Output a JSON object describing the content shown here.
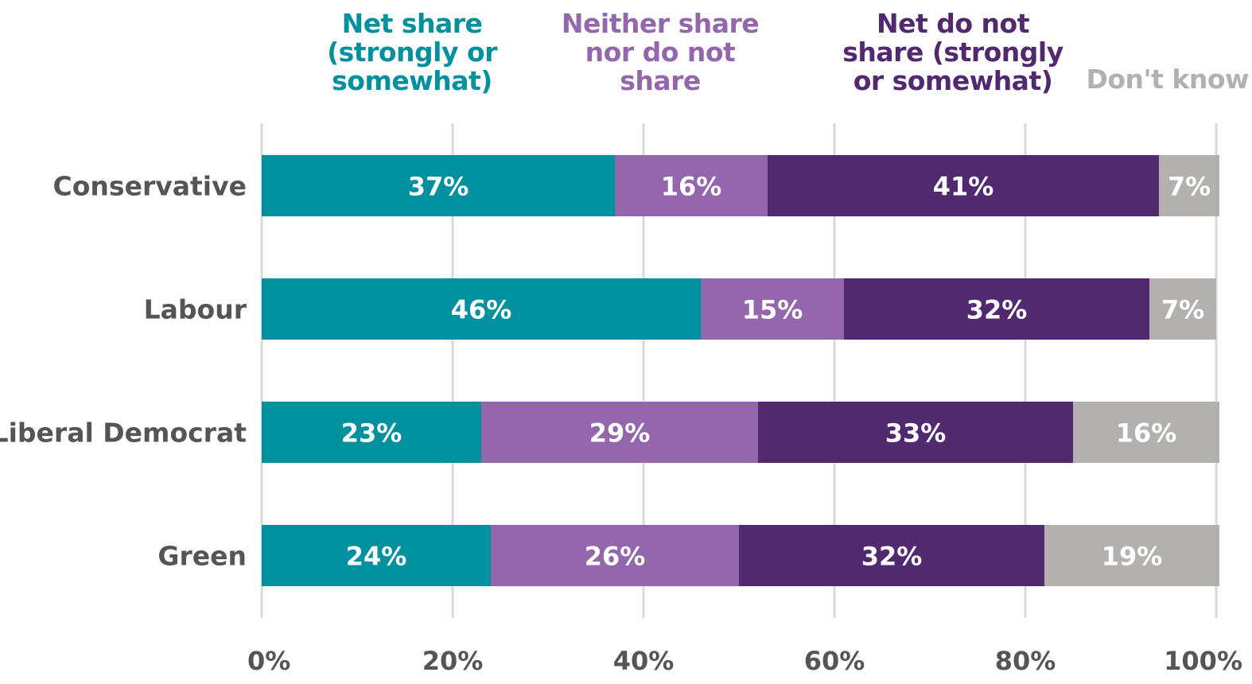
{
  "chart_data": {
    "type": "bar",
    "orientation": "horizontal",
    "stacked": true,
    "categories": [
      "Conservative",
      "Labour",
      "Liberal Democrat",
      "Green"
    ],
    "series": [
      {
        "name": "Net share (strongly or somewhat)",
        "legend_lines": [
          "Net share",
          "(strongly or",
          "somewhat)"
        ],
        "color": "#01909E",
        "values": [
          37,
          46,
          23,
          24
        ]
      },
      {
        "name": "Neither share nor do not share",
        "legend_lines": [
          "Neither share",
          "nor do not",
          "share"
        ],
        "color": "#9467AC",
        "values": [
          16,
          15,
          29,
          26
        ]
      },
      {
        "name": "Net do not share (strongly or somewhat)",
        "legend_lines": [
          "Net do not",
          "share (strongly",
          "or somewhat)"
        ],
        "color": "#51296E",
        "values": [
          41,
          32,
          33,
          32
        ]
      },
      {
        "name": "Don't know",
        "legend_lines": [
          "Don't know"
        ],
        "color": "#B3B1B0",
        "values": [
          7,
          7,
          16,
          19
        ]
      }
    ],
    "data_label_suffix": "%",
    "xlim": [
      0,
      100
    ],
    "xticks": [
      0,
      20,
      40,
      60,
      80,
      100
    ],
    "xtick_labels": [
      "0%",
      "20%",
      "40%",
      "60%",
      "80%",
      "100%"
    ],
    "xlabel": "",
    "ylabel": "",
    "title": "",
    "grid": true,
    "legend_placement": "top",
    "colors": {
      "grid": "#D9D9D9",
      "category_text": "#555555",
      "tick_text": "#555555",
      "data_label": "#FFFFFF"
    }
  }
}
